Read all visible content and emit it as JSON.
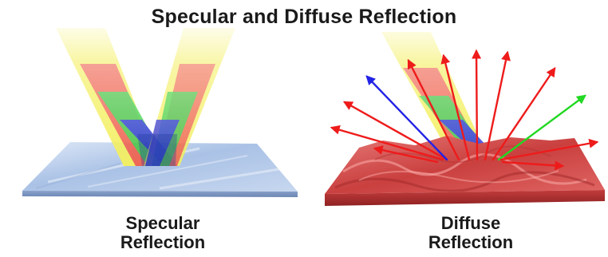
{
  "title": "Specular and Diffuse Reflection",
  "specular": {
    "caption_line1": "Specular",
    "caption_line2": "Reflection"
  },
  "diffuse": {
    "caption_line1": "Diffuse",
    "caption_line2": "Reflection"
  },
  "colors": {
    "beam_yellow": "#f4f06a",
    "beam_red": "#e8453c",
    "beam_green": "#35d04a",
    "beam_blue": "#2a2fd8",
    "mirror_surface": "#b9cdea",
    "rough_surface": "#d9575a",
    "arrow_red": "#ee1b1b",
    "arrow_green": "#22d822",
    "arrow_blue": "#2323e6"
  },
  "icons": {
    "mirror": "smooth-surface",
    "rough": "rough-surface"
  }
}
